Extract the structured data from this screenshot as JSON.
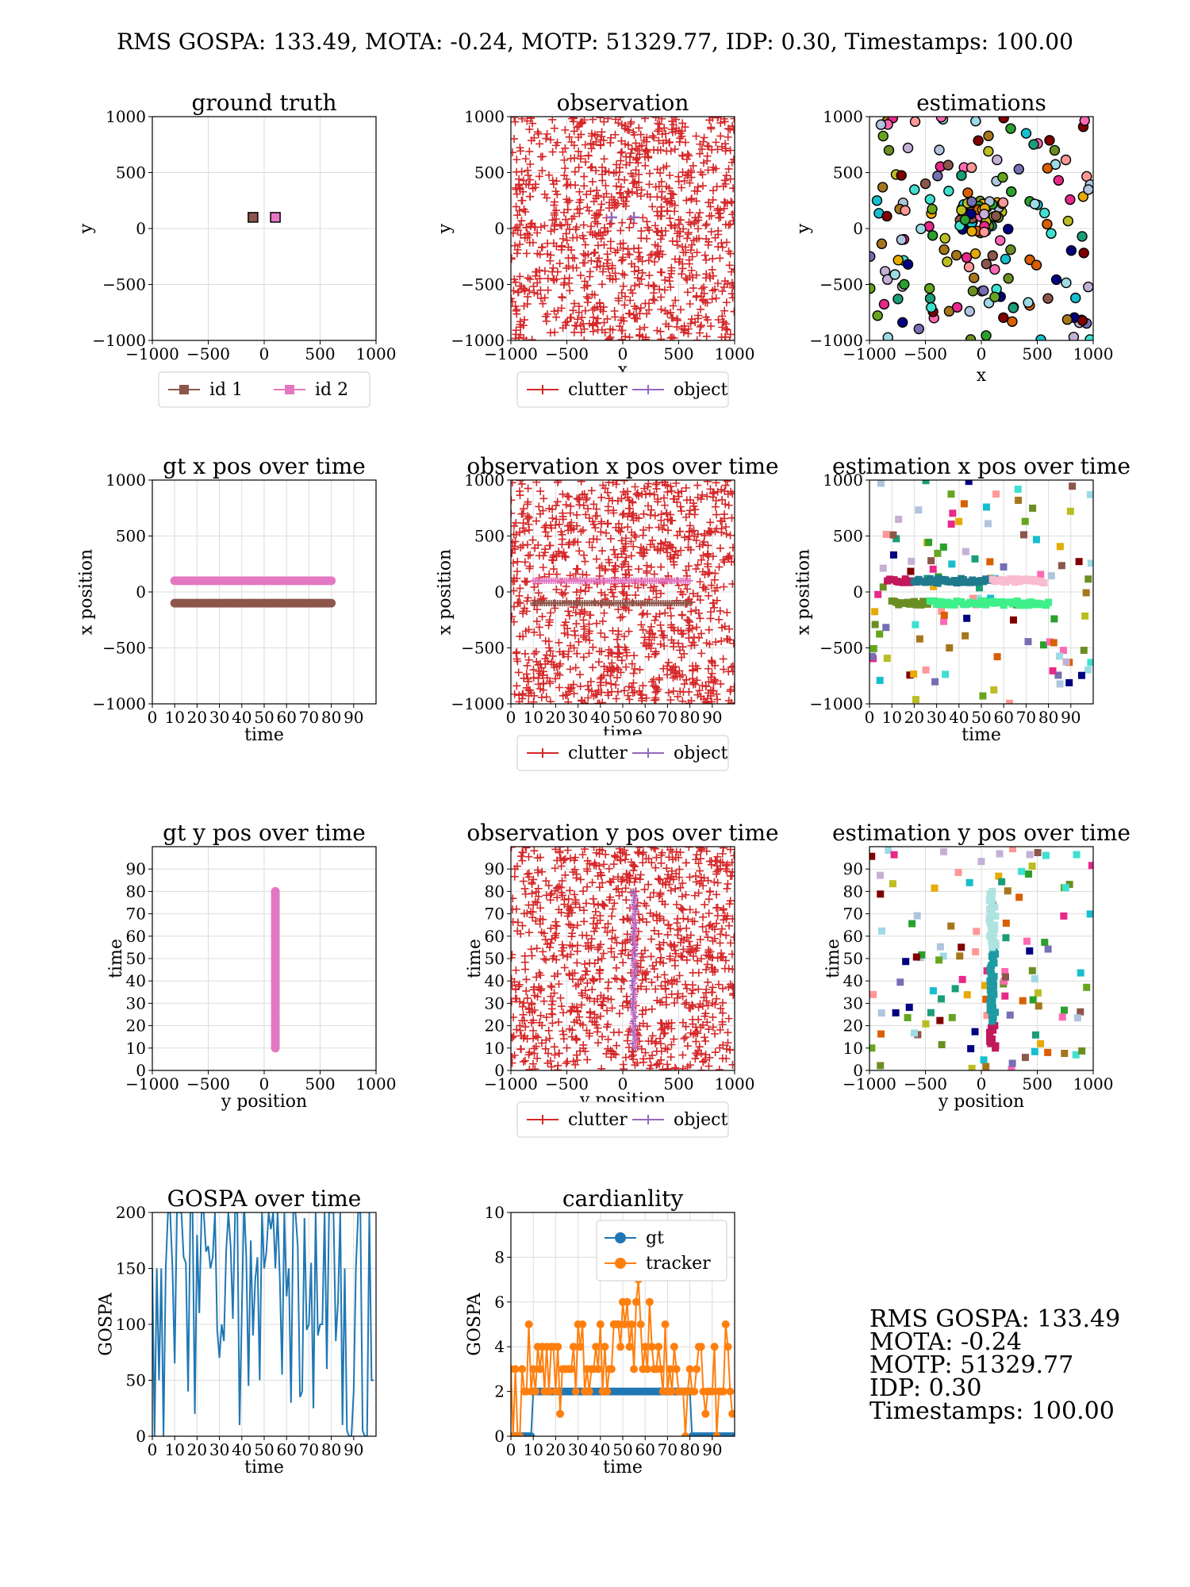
{
  "figure_title": "RMS GOSPA: 133.49, MOTA: -0.24, MOTP: 51329.77, IDP: 0.30, Timestamps: 100.00",
  "summary": {
    "rms_gospa": "RMS GOSPA: 133.49",
    "mota": "MOTA: -0.24",
    "motp": "MOTP: 51329.77",
    "idp": "IDP: 0.30",
    "timestamps": "Timestamps: 100.00"
  },
  "colors": {
    "id1": "#8c564b",
    "id2": "#e377c2",
    "clutter": "#d62728",
    "object": "#9467bd",
    "gt": "#1f77b4",
    "tracker": "#ff7f0e",
    "gospa": "#1f77b4"
  },
  "chart_data": [
    {
      "id": "ground-truth",
      "type": "scatter",
      "title": "ground truth",
      "xlabel": "x",
      "ylabel": "y",
      "xlim": [
        -1000,
        1000
      ],
      "ylim": [
        -1000,
        1000
      ],
      "xticks": [
        "−1000",
        "−500",
        "0",
        "500",
        "1000"
      ],
      "yticks": [
        "−1000",
        "−500",
        "0",
        "500",
        "1000"
      ],
      "grid": true,
      "legend": "bottom-outside",
      "series": [
        {
          "name": "id 1",
          "x": [
            -100
          ],
          "y": [
            100
          ]
        },
        {
          "name": "id 2",
          "x": [
            100
          ],
          "y": [
            100
          ]
        }
      ]
    },
    {
      "id": "observation",
      "type": "scatter",
      "title": "observation",
      "xlabel": "x",
      "ylabel": "y",
      "xlim": [
        -1000,
        1000
      ],
      "ylim": [
        -1000,
        1000
      ],
      "xticks": [
        "−1000",
        "−500",
        "0",
        "500",
        "1000"
      ],
      "yticks": [
        "−1000",
        "−500",
        "0",
        "500",
        "1000"
      ],
      "grid": true,
      "legend": "bottom-outside",
      "series": [
        {
          "name": "clutter",
          "distribution": "uniform random over full range",
          "approx_points": 1000
        },
        {
          "name": "object",
          "x": [
            -100,
            100
          ],
          "y": [
            100,
            100
          ]
        }
      ]
    },
    {
      "id": "estimations",
      "type": "scatter",
      "title": "estimations",
      "xlabel": "x",
      "ylabel": "y",
      "xlim": [
        -1000,
        1000
      ],
      "ylim": [
        -1000,
        1000
      ],
      "xticks": [
        "−1000",
        "−500",
        "0",
        "500",
        "1000"
      ],
      "yticks": [
        "−1000",
        "−500",
        "0",
        "500",
        "1000"
      ],
      "grid": true,
      "series": [
        {
          "distribution": "scattered multicolored track estimates over full range",
          "approx_points": 200
        }
      ]
    },
    {
      "id": "gt-x-over-time",
      "type": "scatter",
      "title": "gt x pos over time",
      "xlabel": "time",
      "ylabel": "x position",
      "xlim": [
        0,
        100
      ],
      "ylim": [
        -1000,
        1000
      ],
      "xticks": [
        "0",
        "10",
        "20",
        "30",
        "40",
        "50",
        "60",
        "70",
        "80",
        "90"
      ],
      "yticks": [
        "−1000",
        "−500",
        "0",
        "500",
        "1000"
      ],
      "grid": true,
      "series": [
        {
          "name": "id 1",
          "t_range": [
            10,
            80
          ],
          "value": -100
        },
        {
          "name": "id 2",
          "t_range": [
            10,
            80
          ],
          "value": 100
        }
      ]
    },
    {
      "id": "obs-x-over-time",
      "type": "scatter",
      "title": "observation x pos over time",
      "xlabel": "time",
      "ylabel": "x position",
      "xlim": [
        0,
        100
      ],
      "ylim": [
        -1000,
        1000
      ],
      "xticks": [
        "0",
        "10",
        "20",
        "30",
        "40",
        "50",
        "60",
        "70",
        "80",
        "90"
      ],
      "yticks": [
        "−1000",
        "−500",
        "0",
        "500",
        "1000"
      ],
      "grid": true,
      "legend": "bottom-outside",
      "series": [
        {
          "name": "clutter",
          "distribution": "uniform random",
          "approx_points": 1000
        },
        {
          "name": "object",
          "t_range": [
            10,
            80
          ],
          "values": [
            -100,
            100
          ]
        }
      ]
    },
    {
      "id": "est-x-over-time",
      "type": "scatter",
      "title": "estimation x pos over time",
      "xlabel": "time",
      "ylabel": "x position",
      "xlim": [
        0,
        100
      ],
      "ylim": [
        -1000,
        1000
      ],
      "xticks": [
        "0",
        "10",
        "20",
        "30",
        "40",
        "50",
        "60",
        "70",
        "80",
        "90"
      ],
      "yticks": [
        "−1000",
        "−500",
        "0",
        "500",
        "1000"
      ],
      "grid": true,
      "series": [
        {
          "distribution": "tracks near x=100 and x=-100 plus scattered false tracks",
          "approx_points": 180
        }
      ]
    },
    {
      "id": "gt-y-over-time",
      "type": "scatter",
      "title": "gt y pos over time",
      "xlabel": "y position",
      "ylabel": "time",
      "xlim": [
        -1000,
        1000
      ],
      "ylim": [
        0,
        100
      ],
      "xticks": [
        "−1000",
        "−500",
        "0",
        "500",
        "1000"
      ],
      "yticks": [
        "0",
        "10",
        "20",
        "30",
        "40",
        "50",
        "60",
        "70",
        "80",
        "90"
      ],
      "grid": true,
      "series": [
        {
          "name": "id 1",
          "t_range": [
            10,
            80
          ],
          "value": 100
        },
        {
          "name": "id 2",
          "t_range": [
            10,
            80
          ],
          "value": 100
        }
      ]
    },
    {
      "id": "obs-y-over-time",
      "type": "scatter",
      "title": "observation y pos over time",
      "xlabel": "y position",
      "ylabel": "time",
      "xlim": [
        -1000,
        1000
      ],
      "ylim": [
        0,
        100
      ],
      "xticks": [
        "−1000",
        "−500",
        "0",
        "500",
        "1000"
      ],
      "yticks": [
        "0",
        "10",
        "20",
        "30",
        "40",
        "50",
        "60",
        "70",
        "80",
        "90"
      ],
      "grid": true,
      "legend": "bottom-outside",
      "series": [
        {
          "name": "clutter",
          "distribution": "uniform random",
          "approx_points": 1000
        },
        {
          "name": "object",
          "t_range": [
            10,
            80
          ],
          "value": 100
        }
      ]
    },
    {
      "id": "est-y-over-time",
      "type": "scatter",
      "title": "estimation y pos over time",
      "xlabel": "y position",
      "ylabel": "time",
      "xlim": [
        -1000,
        1000
      ],
      "ylim": [
        0,
        100
      ],
      "xticks": [
        "−1000",
        "−500",
        "0",
        "500",
        "1000"
      ],
      "yticks": [
        "0",
        "10",
        "20",
        "30",
        "40",
        "50",
        "60",
        "70",
        "80",
        "90"
      ],
      "grid": true,
      "series": [
        {
          "distribution": "track near y=100 plus scattered false tracks",
          "approx_points": 180
        }
      ]
    },
    {
      "id": "gospa-over-time",
      "type": "line",
      "title": "GOSPA over time",
      "xlabel": "time",
      "ylabel": "GOSPA",
      "xlim": [
        0,
        100
      ],
      "ylim": [
        0,
        200
      ],
      "xticks": [
        "0",
        "10",
        "20",
        "30",
        "40",
        "50",
        "60",
        "70",
        "80",
        "90"
      ],
      "yticks": [
        "0",
        "50",
        "100",
        "150",
        "200"
      ],
      "grid": true,
      "series": [
        {
          "x_start": 0,
          "values": [
            150,
            0,
            150,
            50,
            150,
            0,
            150,
            200,
            200,
            150,
            65,
            200,
            200,
            200,
            160,
            155,
            40,
            200,
            200,
            20,
            180,
            110,
            200,
            200,
            165,
            170,
            150,
            160,
            200,
            95,
            70,
            100,
            85,
            165,
            200,
            170,
            105,
            200,
            200,
            10,
            110,
            210,
            160,
            45,
            175,
            90,
            140,
            160,
            50,
            200,
            150,
            165,
            200,
            185,
            200,
            150,
            200,
            140,
            55,
            200,
            125,
            150,
            30,
            200,
            200,
            170,
            35,
            40,
            195,
            95,
            100,
            155,
            25,
            200,
            90,
            100,
            100,
            200,
            60,
            200,
            200,
            200,
            85,
            120,
            200,
            10,
            150,
            5,
            0,
            0,
            40,
            150,
            200,
            200,
            5,
            0,
            0,
            200,
            50,
            50
          ]
        }
      ]
    },
    {
      "id": "cardinality",
      "type": "line",
      "title": "cardianlity",
      "xlabel": "time",
      "ylabel": "GOSPA",
      "xlim": [
        0,
        100
      ],
      "ylim": [
        0,
        10
      ],
      "xticks": [
        "0",
        "10",
        "20",
        "30",
        "40",
        "50",
        "60",
        "70",
        "80",
        "90"
      ],
      "yticks": [
        "0",
        "2",
        "4",
        "6",
        "8",
        "10"
      ],
      "grid": true,
      "legend": "top-right",
      "series": [
        {
          "name": "gt",
          "x_start": 0,
          "values": [
            0,
            0,
            0,
            0,
            0,
            0,
            0,
            0,
            0,
            0,
            2,
            2,
            2,
            2,
            2,
            2,
            2,
            2,
            2,
            2,
            2,
            2,
            2,
            2,
            2,
            2,
            2,
            2,
            2,
            2,
            2,
            2,
            2,
            2,
            2,
            2,
            2,
            2,
            2,
            2,
            2,
            2,
            2,
            2,
            2,
            2,
            2,
            2,
            2,
            2,
            2,
            2,
            2,
            2,
            2,
            2,
            2,
            2,
            2,
            2,
            2,
            2,
            2,
            2,
            2,
            2,
            2,
            2,
            2,
            2,
            2,
            2,
            2,
            2,
            2,
            2,
            2,
            2,
            2,
            2,
            2,
            0,
            0,
            0,
            0,
            0,
            0,
            0,
            0,
            0,
            0,
            0,
            0,
            0,
            0,
            0,
            0,
            0,
            0,
            0
          ]
        },
        {
          "name": "tracker",
          "x_start": 0,
          "values": [
            3,
            0,
            3,
            0,
            0,
            3,
            2,
            2,
            5,
            2,
            3,
            2,
            4,
            3,
            4,
            2,
            4,
            2,
            4,
            4,
            2,
            4,
            1,
            3,
            3,
            3,
            3,
            3,
            4,
            2,
            5,
            4,
            5,
            2,
            3,
            2,
            3,
            3,
            4,
            3,
            5,
            2,
            4,
            2,
            3,
            3,
            5,
            5,
            5,
            4,
            6,
            5,
            6,
            4,
            5,
            3,
            6,
            7,
            5,
            3,
            4,
            3,
            6,
            4,
            3,
            3,
            4,
            3,
            2,
            5,
            2,
            3,
            2,
            4,
            3,
            2,
            2,
            2,
            0,
            2,
            3,
            2,
            2,
            3,
            4,
            4,
            2,
            1,
            2,
            2,
            2,
            4,
            0,
            2,
            2,
            2,
            5,
            4,
            2,
            1
          ]
        }
      ]
    }
  ]
}
